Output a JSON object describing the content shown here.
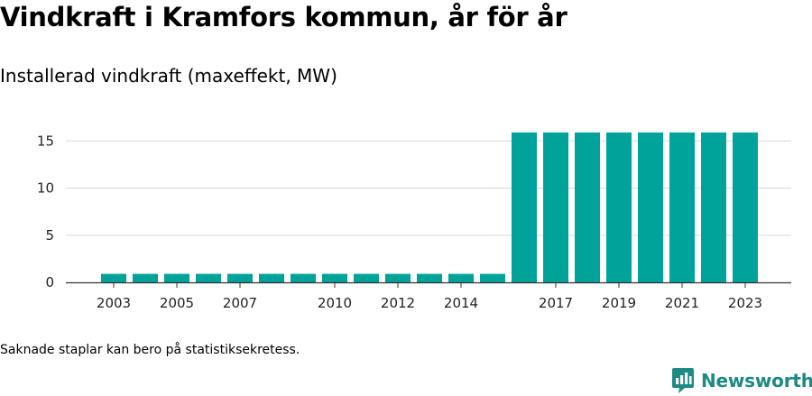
{
  "title": "Vindkraft i Kramfors kommun, år för år",
  "subtitle": "Installerad vindkraft (maxeffekt, MW)",
  "note": "Saknade staplar kan bero på statistiksekretess.",
  "brand": {
    "name": "Newsworthy",
    "logo_icon": "newsworthy-chart-bubble-icon",
    "color": "#1d8a83"
  },
  "chart_data": {
    "type": "bar",
    "bar_color": "#00a39a",
    "categories": [
      "2003",
      "2004",
      "2005",
      "2006",
      "2007",
      "2008",
      "2009",
      "2010",
      "2011",
      "2012",
      "2013",
      "2014",
      "2015",
      "2016",
      "2017",
      "2018",
      "2019",
      "2020",
      "2021",
      "2022",
      "2023"
    ],
    "values": [
      0.9,
      0.9,
      0.9,
      0.9,
      0.9,
      0.9,
      0.9,
      0.9,
      0.9,
      0.9,
      0.9,
      0.9,
      0.9,
      15.9,
      15.9,
      15.9,
      15.9,
      15.9,
      15.9,
      15.9,
      15.9
    ],
    "x_tick_labels": [
      "2003",
      "2005",
      "2007",
      "2010",
      "2012",
      "2014",
      "2017",
      "2019",
      "2021",
      "2023"
    ],
    "y_ticks": [
      0,
      5,
      10,
      15
    ],
    "ylim": [
      0,
      17
    ],
    "grid": true,
    "xlabel": "",
    "ylabel": ""
  }
}
